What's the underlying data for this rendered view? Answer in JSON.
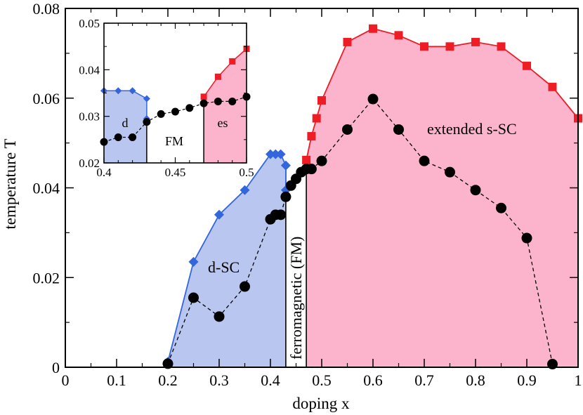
{
  "chart_data": {
    "type": "line",
    "title": "",
    "xlabel": "doping x",
    "ylabel": "temperature T",
    "xlim": [
      0,
      1
    ],
    "ylim": [
      0,
      0.08
    ],
    "xticks": [
      "0",
      "0.1",
      "0.2",
      "0.3",
      "0.4",
      "0.5",
      "0.6",
      "0.7",
      "0.8",
      "0.9",
      "1"
    ],
    "yticks": [
      "0",
      "0.02",
      "0.04",
      "0.06",
      "0.08"
    ],
    "colors": {
      "d": "#3366dd",
      "d_fill": "#b8c6f0",
      "es": "#ee1c24",
      "es_fill": "#fbb4cc",
      "black": "#000000"
    },
    "series": [
      {
        "name": "d-SC Tc",
        "marker": "diamond",
        "x": [
          0.2,
          0.25,
          0.3,
          0.35,
          0.4,
          0.41,
          0.42,
          0.43
        ],
        "y": [
          0.0012,
          0.0235,
          0.034,
          0.0395,
          0.0475,
          0.0475,
          0.0475,
          0.045
        ]
      },
      {
        "name": "extended s-SC Tc",
        "marker": "square",
        "x": [
          0.47,
          0.48,
          0.49,
          0.5,
          0.55,
          0.6,
          0.65,
          0.7,
          0.75,
          0.8,
          0.85,
          0.9,
          0.95,
          1.0
        ],
        "y": [
          0.0462,
          0.0515,
          0.0555,
          0.0595,
          0.0725,
          0.0755,
          0.074,
          0.0715,
          0.0715,
          0.0725,
          0.0715,
          0.0672,
          0.0625,
          0.0555
        ]
      },
      {
        "name": "black dashed",
        "marker": "circle",
        "x": [
          0.2,
          0.25,
          0.3,
          0.35,
          0.4,
          0.41,
          0.42,
          0.43,
          0.44,
          0.45,
          0.46,
          0.47,
          0.48,
          0.5,
          0.55,
          0.6,
          0.65,
          0.7,
          0.75,
          0.8,
          0.85,
          0.9,
          0.95
        ],
        "y": [
          0.0008,
          0.0155,
          0.0113,
          0.018,
          0.033,
          0.034,
          0.034,
          0.038,
          0.0405,
          0.042,
          0.0435,
          0.0442,
          0.0442,
          0.046,
          0.053,
          0.0598,
          0.053,
          0.046,
          0.0435,
          0.0395,
          0.0355,
          0.0288,
          0.0007
        ]
      }
    ],
    "regions": [
      {
        "name": "d-SC",
        "label": "d-SC"
      },
      {
        "name": "ferromagnetic",
        "label": "ferromagnetic (FM)",
        "x_from": 0.43,
        "x_to": 0.47
      },
      {
        "name": "extended s-SC",
        "label": "extended s-SC"
      }
    ],
    "inset": {
      "xlim": [
        0.4,
        0.5
      ],
      "ylim": [
        0.02,
        0.05
      ],
      "xticks": [
        "0.4",
        "0.45",
        "0.5"
      ],
      "yticks": [
        "0.02",
        "0.03",
        "0.04",
        "0.05"
      ],
      "region_labels": {
        "d": "d",
        "fm": "FM",
        "es": "es"
      },
      "series": [
        {
          "name": "d-SC Tc",
          "marker": "diamond",
          "x": [
            0.4,
            0.41,
            0.42,
            0.43,
            0.43
          ],
          "y": [
            0.0355,
            0.0355,
            0.0355,
            0.0338,
            0.0295
          ]
        },
        {
          "name": "extended s-SC Tc",
          "marker": "square",
          "x": [
            0.47,
            0.48,
            0.49,
            0.5
          ],
          "y": [
            0.0342,
            0.0385,
            0.0418,
            0.0445
          ]
        },
        {
          "name": "black dashed",
          "marker": "circle",
          "x": [
            0.4,
            0.41,
            0.42,
            0.43,
            0.44,
            0.45,
            0.46,
            0.47,
            0.48,
            0.49,
            0.5
          ],
          "y": [
            0.0245,
            0.0255,
            0.0255,
            0.0288,
            0.0305,
            0.031,
            0.0318,
            0.0328,
            0.0332,
            0.0332,
            0.0342
          ]
        }
      ]
    }
  }
}
